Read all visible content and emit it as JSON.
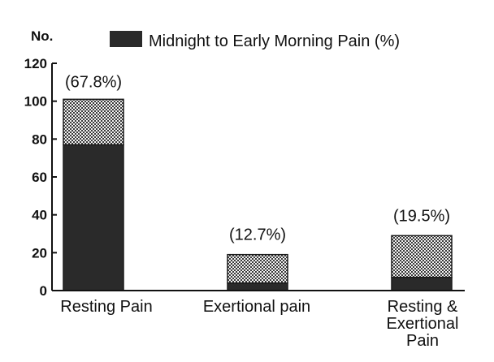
{
  "chart_data": {
    "type": "bar",
    "ylabel": "No.",
    "ylim": [
      0,
      120
    ],
    "yticks": [
      "0",
      "20",
      "40",
      "60",
      "80",
      "100",
      "120"
    ],
    "categories": [
      [
        "Resting Pain"
      ],
      [
        "Exertional pain"
      ],
      [
        "Resting &",
        "Exertional",
        "Pain"
      ]
    ],
    "series": [
      {
        "name": "Midnight to Early Morning Pain (%)",
        "values": [
          77,
          4,
          7
        ],
        "color": "#2a2a2a",
        "pattern": "solid"
      },
      {
        "name": "",
        "values": [
          24,
          15,
          22
        ],
        "color": "#b8b8b8",
        "pattern": "checker"
      }
    ],
    "totals": [
      101,
      19,
      29
    ],
    "data_labels": [
      "(67.8%)",
      "(12.7%)",
      "(19.5%)"
    ],
    "legend": {
      "label": "Midnight to Early Morning Pain (%)",
      "placement": "top-right"
    },
    "grid": false
  }
}
